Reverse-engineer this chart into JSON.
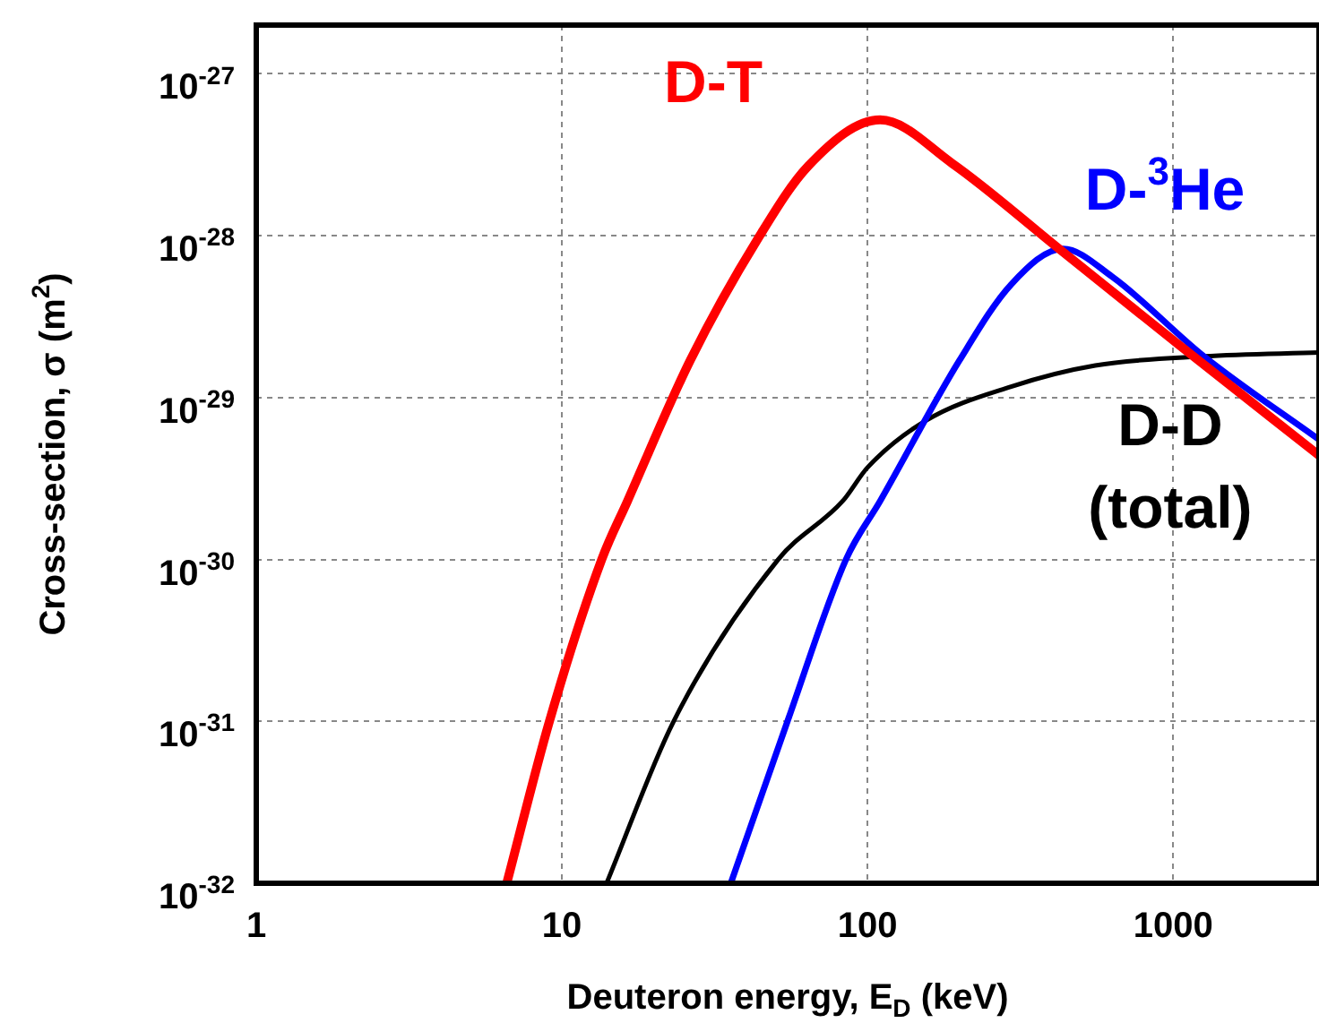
{
  "chart_data": {
    "type": "line",
    "xlabel": "Deuteron energy, E$_{D}$ (keV)",
    "ylabel": "Cross-section, σ (m$^{2}$)",
    "log": "xy",
    "grid": true,
    "legend": false,
    "marker": "none",
    "line_style": "solid",
    "xlim": [
      1,
      3000
    ],
    "xticks": [
      1,
      10,
      100,
      1000
    ],
    "ylim": [
      1e-32,
      2e-27
    ],
    "yticks": [
      {
        "value": 1e-32,
        "label": "10$^{-32}$"
      },
      {
        "value": 1e-31,
        "label": "10$^{-31}$"
      },
      {
        "value": 1e-30,
        "label": "10$^{-30}$"
      },
      {
        "value": 1e-29,
        "label": "10$^{-29}$"
      },
      {
        "value": 1e-28,
        "label": "10$^{-28}$"
      },
      {
        "value": 1e-27,
        "label": "10$^{-27}$"
      }
    ],
    "series": [
      {
        "name": "D-T",
        "color": "#ff0000",
        "x": [
          6.6,
          9.1,
          13.5,
          16.4,
          26.3,
          43.8,
          64,
          110,
          189,
          430,
          1050,
          3000
        ],
        "values": [
          1e-32,
          1e-31,
          1e-30,
          2.3e-30,
          1.7e-29,
          9.6e-29,
          2.7e-28,
          5.2e-28,
          2.8e-28,
          8.1e-29,
          2.1e-29,
          4.4e-30
        ]
      },
      {
        "name": "D-$^{3}$He",
        "color": "#0000ff",
        "x": [
          35.7,
          54.7,
          85,
          110,
          200,
          295,
          436,
          630,
          1260,
          3000
        ],
        "values": [
          1e-32,
          1e-31,
          1e-30,
          2.3e-30,
          1.7e-29,
          5e-29,
          8.3e-29,
          5.6e-29,
          1.8e-29,
          5.5e-30
        ]
      },
      {
        "name": "D-D (total)",
        "color": "#000000",
        "x": [
          14,
          23.2,
          51,
          83,
          100,
          155,
          295,
          556,
          1260,
          3000
        ],
        "values": [
          1e-32,
          1e-31,
          1e-30,
          2.3e-30,
          3.7e-30,
          7.2e-30,
          1.17e-29,
          1.58e-29,
          1.8e-29,
          1.9e-29
        ]
      }
    ]
  }
}
